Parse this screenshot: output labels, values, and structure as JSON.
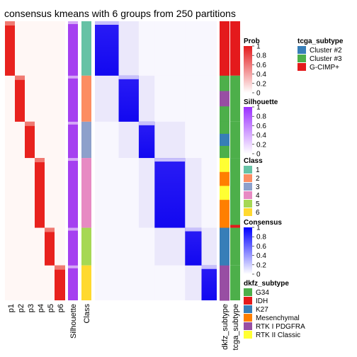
{
  "title": "consensus kmeans with 6 groups from 250 partitions",
  "chart_data": {
    "type": "heatmap",
    "title": "consensus kmeans with 6 groups from 250 partitions",
    "column_labels": [
      "p1",
      "p2",
      "p3",
      "p4",
      "p5",
      "p6",
      "Silhouette",
      "Class",
      "dkfz_subtype",
      "tcga_subtype"
    ],
    "class_groups": [
      {
        "class": 1,
        "share": 0.195
      },
      {
        "class": 2,
        "share": 0.165
      },
      {
        "class": 3,
        "share": 0.13
      },
      {
        "class": 4,
        "share": 0.25
      },
      {
        "class": 5,
        "share": 0.135
      },
      {
        "class": 6,
        "share": 0.125
      }
    ],
    "consensus_matrix": "block-diagonal; high consensus (~1) within each class, near 0 between classes",
    "legends": [
      {
        "title": "Prob",
        "type": "continuous",
        "ticks": [
          "1",
          "0.8",
          "0.6",
          "0.4",
          "0.2",
          "0"
        ],
        "colors": [
          "#e41a1c",
          "#ffffff"
        ]
      },
      {
        "title": "Silhouette",
        "type": "continuous",
        "ticks": [
          "1",
          "0.8",
          "0.6",
          "0.4",
          "0.2",
          "0"
        ],
        "colors": [
          "#9b30ff",
          "#ffffff"
        ]
      },
      {
        "title": "Class",
        "type": "discrete",
        "items": [
          {
            "label": "1",
            "color": "#66c2a5"
          },
          {
            "label": "2",
            "color": "#fc8d62"
          },
          {
            "label": "3",
            "color": "#8da0cb"
          },
          {
            "label": "4",
            "color": "#e78ac3"
          },
          {
            "label": "5",
            "color": "#a6d854"
          },
          {
            "label": "6",
            "color": "#ffd92f"
          }
        ]
      },
      {
        "title": "Consensus",
        "type": "continuous",
        "ticks": [
          "1",
          "0.8",
          "0.6",
          "0.4",
          "0.2",
          "0"
        ],
        "colors": [
          "#0000ff",
          "#ffffff"
        ]
      },
      {
        "title": "dkfz_subtype",
        "type": "discrete",
        "items": [
          {
            "label": "G34",
            "color": "#4daf4a"
          },
          {
            "label": "IDH",
            "color": "#e41a1c"
          },
          {
            "label": "K27",
            "color": "#377eb8"
          },
          {
            "label": "Mesenchymal",
            "color": "#ff7f00"
          },
          {
            "label": "RTK I PDGFRA",
            "color": "#984ea3"
          },
          {
            "label": "RTK II Classic",
            "color": "#ffff33"
          }
        ]
      },
      {
        "title": "tcga_subtype",
        "type": "discrete",
        "items": [
          {
            "label": "Cluster #2",
            "color": "#377eb8"
          },
          {
            "label": "Cluster #3",
            "color": "#4daf4a"
          },
          {
            "label": "G-CIMP+",
            "color": "#e41a1c"
          }
        ]
      }
    ]
  }
}
